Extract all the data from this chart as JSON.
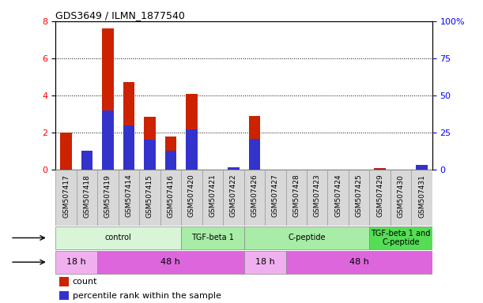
{
  "title": "GDS3649 / ILMN_1877540",
  "samples": [
    "GSM507417",
    "GSM507418",
    "GSM507419",
    "GSM507414",
    "GSM507415",
    "GSM507416",
    "GSM507420",
    "GSM507421",
    "GSM507422",
    "GSM507426",
    "GSM507427",
    "GSM507428",
    "GSM507423",
    "GSM507424",
    "GSM507425",
    "GSM507429",
    "GSM507430",
    "GSM507431"
  ],
  "count_values": [
    2.0,
    1.0,
    7.6,
    4.7,
    2.85,
    1.8,
    4.1,
    0.0,
    0.0,
    2.9,
    0.0,
    0.0,
    0.0,
    0.0,
    0.0,
    0.1,
    0.0,
    0.0
  ],
  "percentile_values": [
    0.0,
    13.0,
    40.0,
    30.0,
    20.0,
    13.0,
    27.0,
    0.0,
    1.5,
    21.0,
    0.0,
    0.0,
    0.0,
    0.0,
    0.0,
    0.6,
    0.0,
    3.0
  ],
  "ylim_left": [
    0,
    8
  ],
  "ylim_right": [
    0,
    100
  ],
  "yticks_left": [
    0,
    2,
    4,
    6,
    8
  ],
  "yticks_right": [
    0,
    25,
    50,
    75,
    100
  ],
  "ytick_labels_right": [
    "0",
    "25",
    "50",
    "75",
    "100%"
  ],
  "bar_color_count": "#cc2200",
  "bar_color_percentile": "#3333cc",
  "agent_groups": [
    {
      "label": "control",
      "start": 0,
      "end": 5,
      "color": "#d8f5d8"
    },
    {
      "label": "TGF-beta 1",
      "start": 6,
      "end": 8,
      "color": "#a8eca8"
    },
    {
      "label": "C-peptide",
      "start": 9,
      "end": 14,
      "color": "#a8eca8"
    },
    {
      "label": "TGF-beta 1 and\nC-peptide",
      "start": 15,
      "end": 17,
      "color": "#55dd55"
    }
  ],
  "time_groups": [
    {
      "label": "18 h",
      "start": 0,
      "end": 1,
      "color": "#f0b0f0"
    },
    {
      "label": "48 h",
      "start": 2,
      "end": 8,
      "color": "#dd66dd"
    },
    {
      "label": "18 h",
      "start": 9,
      "end": 10,
      "color": "#f0b0f0"
    },
    {
      "label": "48 h",
      "start": 11,
      "end": 17,
      "color": "#dd66dd"
    }
  ],
  "legend_count_label": "count",
  "legend_percentile_label": "percentile rank within the sample",
  "tick_cell_color": "#d8d8d8",
  "tick_cell_edge": "#999999",
  "tick_label_size": 6.5
}
